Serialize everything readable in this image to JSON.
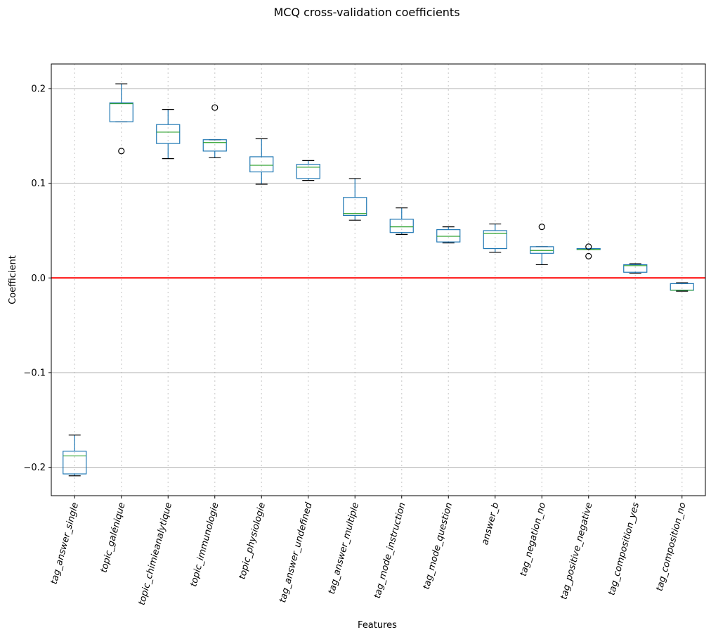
{
  "chart_data": {
    "type": "box",
    "title": "MCQ cross-validation coefficients",
    "xlabel": "Features",
    "ylabel": "Coefficient",
    "ylim": [
      -0.23,
      0.226
    ],
    "yticks": [
      -0.2,
      -0.1,
      0.0,
      0.1,
      0.2
    ],
    "ytick_labels": [
      "−0.2",
      "−0.1",
      "0.0",
      "0.1",
      "0.2"
    ],
    "grid": "horizontal",
    "reference_line": {
      "y": 0.0,
      "color": "#ff0000"
    },
    "colors": {
      "box": "#1f77b4",
      "median": "#2ca02c",
      "whisker_cap": "#000000",
      "outlier": "#000000",
      "grid": "#b0b0b0"
    },
    "categories": [
      "tag_answer_single",
      "topic_galénique",
      "topic_chimieanalytique",
      "topic_immunologie",
      "topic_physiologie",
      "tag_answer_undefined",
      "tag_answer_multiple",
      "tag_mode_instruction",
      "tag_mode_question",
      "answer_b",
      "tag_negation_no",
      "tag_positive_negative",
      "tag_composition_yes",
      "tag_composition_no"
    ],
    "boxes": [
      {
        "name": "tag_answer_single",
        "whislo": -0.209,
        "q1": -0.207,
        "med": -0.188,
        "q3": -0.183,
        "whishi": -0.166,
        "fliers": []
      },
      {
        "name": "topic_galénique",
        "whislo": 0.165,
        "q1": 0.165,
        "med": 0.184,
        "q3": 0.185,
        "whishi": 0.205,
        "fliers": [
          0.134
        ]
      },
      {
        "name": "topic_chimieanalytique",
        "whislo": 0.126,
        "q1": 0.142,
        "med": 0.154,
        "q3": 0.162,
        "whishi": 0.178,
        "fliers": []
      },
      {
        "name": "topic_immunologie",
        "whislo": 0.127,
        "q1": 0.134,
        "med": 0.143,
        "q3": 0.146,
        "whishi": 0.146,
        "fliers": [
          0.18
        ]
      },
      {
        "name": "topic_physiologie",
        "whislo": 0.099,
        "q1": 0.112,
        "med": 0.119,
        "q3": 0.128,
        "whishi": 0.147,
        "fliers": []
      },
      {
        "name": "tag_answer_undefined",
        "whislo": 0.103,
        "q1": 0.105,
        "med": 0.117,
        "q3": 0.12,
        "whishi": 0.124,
        "fliers": []
      },
      {
        "name": "tag_answer_multiple",
        "whislo": 0.061,
        "q1": 0.066,
        "med": 0.068,
        "q3": 0.085,
        "whishi": 0.105,
        "fliers": []
      },
      {
        "name": "tag_mode_instruction",
        "whislo": 0.046,
        "q1": 0.048,
        "med": 0.054,
        "q3": 0.062,
        "whishi": 0.074,
        "fliers": []
      },
      {
        "name": "tag_mode_question",
        "whislo": 0.037,
        "q1": 0.038,
        "med": 0.044,
        "q3": 0.051,
        "whishi": 0.054,
        "fliers": []
      },
      {
        "name": "answer_b",
        "whislo": 0.027,
        "q1": 0.031,
        "med": 0.047,
        "q3": 0.05,
        "whishi": 0.057,
        "fliers": []
      },
      {
        "name": "tag_negation_no",
        "whislo": 0.014,
        "q1": 0.026,
        "med": 0.029,
        "q3": 0.033,
        "whishi": 0.033,
        "fliers": [
          0.054
        ]
      },
      {
        "name": "tag_positive_negative",
        "whislo": 0.03,
        "q1": 0.03,
        "med": 0.03,
        "q3": 0.031,
        "whishi": 0.031,
        "fliers": [
          0.033,
          0.023
        ]
      },
      {
        "name": "tag_composition_yes",
        "whislo": 0.005,
        "q1": 0.006,
        "med": 0.013,
        "q3": 0.014,
        "whishi": 0.015,
        "fliers": []
      },
      {
        "name": "tag_composition_no",
        "whislo": -0.014,
        "q1": -0.013,
        "med": -0.013,
        "q3": -0.006,
        "whishi": -0.005,
        "fliers": []
      }
    ]
  }
}
